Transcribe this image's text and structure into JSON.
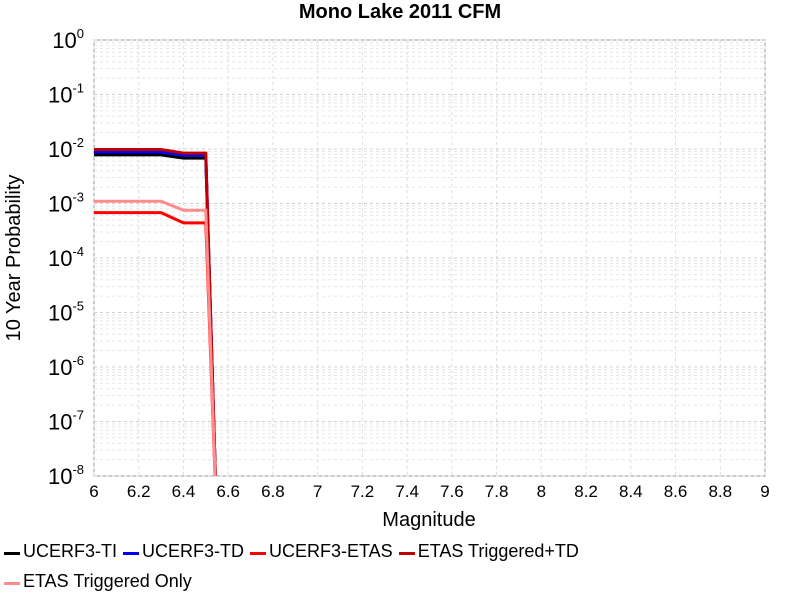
{
  "chart_data": {
    "type": "line",
    "title": "Mono Lake 2011 CFM",
    "xlabel": "Magnitude",
    "ylabel": "10 Year Probability",
    "xlim": [
      6,
      9
    ],
    "ylim": [
      1e-08,
      1
    ],
    "yscale": "log",
    "grid": true,
    "legend_position": "bottom",
    "x_ticks": [
      "6",
      "6.2",
      "6.4",
      "6.6",
      "6.8",
      "7",
      "7.2",
      "7.4",
      "7.6",
      "7.8",
      "8",
      "8.2",
      "8.4",
      "8.6",
      "8.8",
      "9"
    ],
    "y_ticks": [
      {
        "base": "10",
        "exp": "0"
      },
      {
        "base": "10",
        "exp": "-1"
      },
      {
        "base": "10",
        "exp": "-2"
      },
      {
        "base": "10",
        "exp": "-3"
      },
      {
        "base": "10",
        "exp": "-4"
      },
      {
        "base": "10",
        "exp": "-5"
      },
      {
        "base": "10",
        "exp": "-6"
      },
      {
        "base": "10",
        "exp": "-7"
      },
      {
        "base": "10",
        "exp": "-8"
      }
    ],
    "series": [
      {
        "name": "UCERF3-TI",
        "color": "#000000",
        "x": [
          6.0,
          6.1,
          6.2,
          6.3,
          6.4,
          6.5,
          6.55
        ],
        "y": [
          0.0078,
          0.0078,
          0.0078,
          0.0078,
          0.0068,
          0.0068,
          1e-09
        ]
      },
      {
        "name": "UCERF3-TD",
        "color": "#0000ff",
        "x": [
          6.0,
          6.1,
          6.2,
          6.3,
          6.4,
          6.5,
          6.55
        ],
        "y": [
          0.0088,
          0.0088,
          0.0088,
          0.0088,
          0.0077,
          0.0077,
          1e-09
        ]
      },
      {
        "name": "UCERF3-ETAS",
        "color": "#ff0000",
        "x": [
          6.0,
          6.1,
          6.2,
          6.3,
          6.4,
          6.5,
          6.55
        ],
        "y": [
          0.00068,
          0.00068,
          0.00068,
          0.00068,
          0.00044,
          0.00044,
          1e-09
        ]
      },
      {
        "name": "ETAS Triggered+TD",
        "color": "#c00000",
        "x": [
          6.0,
          6.1,
          6.2,
          6.3,
          6.4,
          6.5,
          6.55
        ],
        "y": [
          0.0098,
          0.0098,
          0.0098,
          0.0098,
          0.0084,
          0.0084,
          1e-09
        ]
      },
      {
        "name": "ETAS Triggered Only",
        "color": "#ff8c8c",
        "x": [
          6.0,
          6.1,
          6.2,
          6.3,
          6.4,
          6.5,
          6.55
        ],
        "y": [
          0.0011,
          0.0011,
          0.0011,
          0.0011,
          0.00075,
          0.00075,
          1e-09
        ]
      }
    ]
  }
}
